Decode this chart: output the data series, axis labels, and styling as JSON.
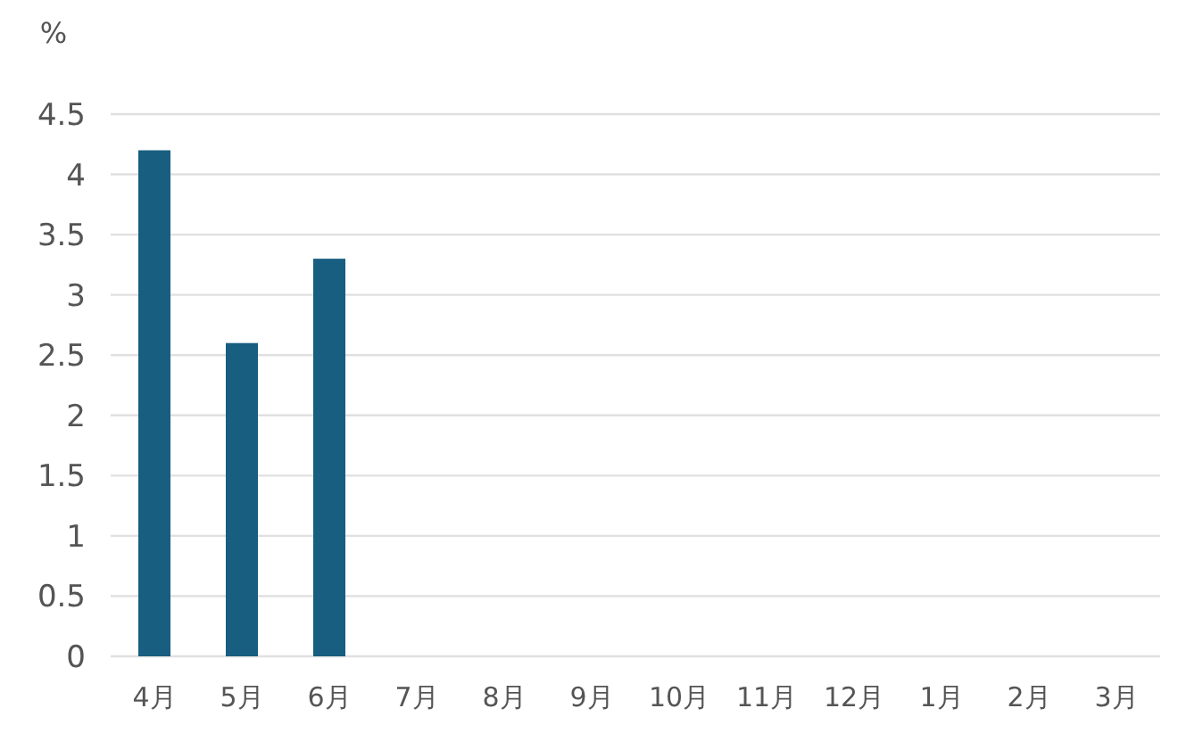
{
  "chart_data": {
    "type": "bar",
    "ylabel": "%",
    "categories": [
      "4月",
      "5月",
      "6月",
      "7月",
      "8月",
      "9月",
      "10月",
      "11月",
      "12月",
      "1月",
      "2月",
      "3月"
    ],
    "values": [
      4.2,
      2.6,
      3.3,
      null,
      null,
      null,
      null,
      null,
      null,
      null,
      null,
      null
    ],
    "color": "#175e80",
    "ylim": [
      0,
      4.5
    ],
    "yticks": [
      0,
      0.5,
      1,
      1.5,
      2,
      2.5,
      3,
      3.5,
      4,
      4.5
    ],
    "grid": "y"
  }
}
